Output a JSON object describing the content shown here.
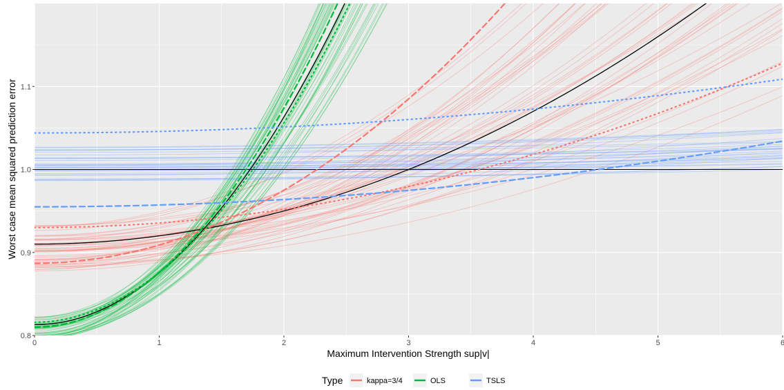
{
  "chart_data": {
    "type": "line",
    "title": "",
    "xlabel": "Maximum Intervention Strength sup|v|",
    "ylabel": "Worst case mean squared prediction error",
    "xlim": [
      0,
      6
    ],
    "ylim": [
      0.8,
      1.2
    ],
    "x_ticks": [
      0,
      1,
      2,
      3,
      4,
      5,
      6
    ],
    "x_tick_labels": [
      "0",
      "1",
      "2",
      "3",
      "4",
      "5",
      "6"
    ],
    "y_ticks": [
      0.8,
      0.9,
      1.0,
      1.1
    ],
    "y_tick_labels": [
      "0.8",
      "0.9",
      "1.0",
      "1.1"
    ],
    "grid": true,
    "legend": {
      "title": "Type",
      "placement": "bottom",
      "entries": [
        {
          "label": "kappa=3/4",
          "color": "#F8766D"
        },
        {
          "label": "OLS",
          "color": "#00BA38"
        },
        {
          "label": "TSLS",
          "color": "#619CFF"
        }
      ]
    },
    "reference_line_y": 1.0,
    "series": [
      {
        "name": "kappa=3/4",
        "group": "kappa=3/4",
        "style": "solid",
        "color": "#000000",
        "intercept": 0.91,
        "slope": 0.01
      },
      {
        "name": "kappa=3/4",
        "group": "kappa=3/4",
        "style": "dashed",
        "color": "#F8766D",
        "intercept": 0.887,
        "slope": 0.022
      },
      {
        "name": "kappa=3/4",
        "group": "kappa=3/4",
        "style": "dotted",
        "color": "#F8766D",
        "intercept": 0.93,
        "slope": 0.0055
      },
      {
        "name": "OLS",
        "group": "OLS",
        "style": "solid",
        "color": "#000000",
        "intercept": 0.813,
        "slope": 0.0625
      },
      {
        "name": "OLS",
        "group": "OLS",
        "style": "dashed",
        "color": "#00BA38",
        "intercept": 0.81,
        "slope": 0.066
      },
      {
        "name": "OLS",
        "group": "OLS",
        "style": "dotted",
        "color": "#00BA38",
        "intercept": 0.816,
        "slope": 0.06
      },
      {
        "name": "TSLS",
        "group": "TSLS",
        "style": "dashed",
        "color": "#619CFF",
        "intercept": 0.955,
        "slope": 0.0022
      },
      {
        "name": "TSLS",
        "group": "TSLS",
        "style": "dotted",
        "color": "#619CFF",
        "intercept": 1.044,
        "slope": 0.0018
      }
    ],
    "bundles": [
      {
        "group": "kappa=3/4",
        "color": "#F8766D",
        "count": 45,
        "intercept_range": [
          0.875,
          0.935
        ],
        "slope_range": [
          0.005,
          0.018
        ]
      },
      {
        "group": "OLS",
        "color": "#00BA38",
        "count": 45,
        "intercept_range": [
          0.795,
          0.825
        ],
        "slope_range": [
          0.05,
          0.075
        ]
      },
      {
        "group": "TSLS",
        "color": "#619CFF",
        "count": 30,
        "intercept_range": [
          0.985,
          1.028
        ],
        "slope_range": [
          0.0002,
          0.0009
        ]
      }
    ]
  }
}
